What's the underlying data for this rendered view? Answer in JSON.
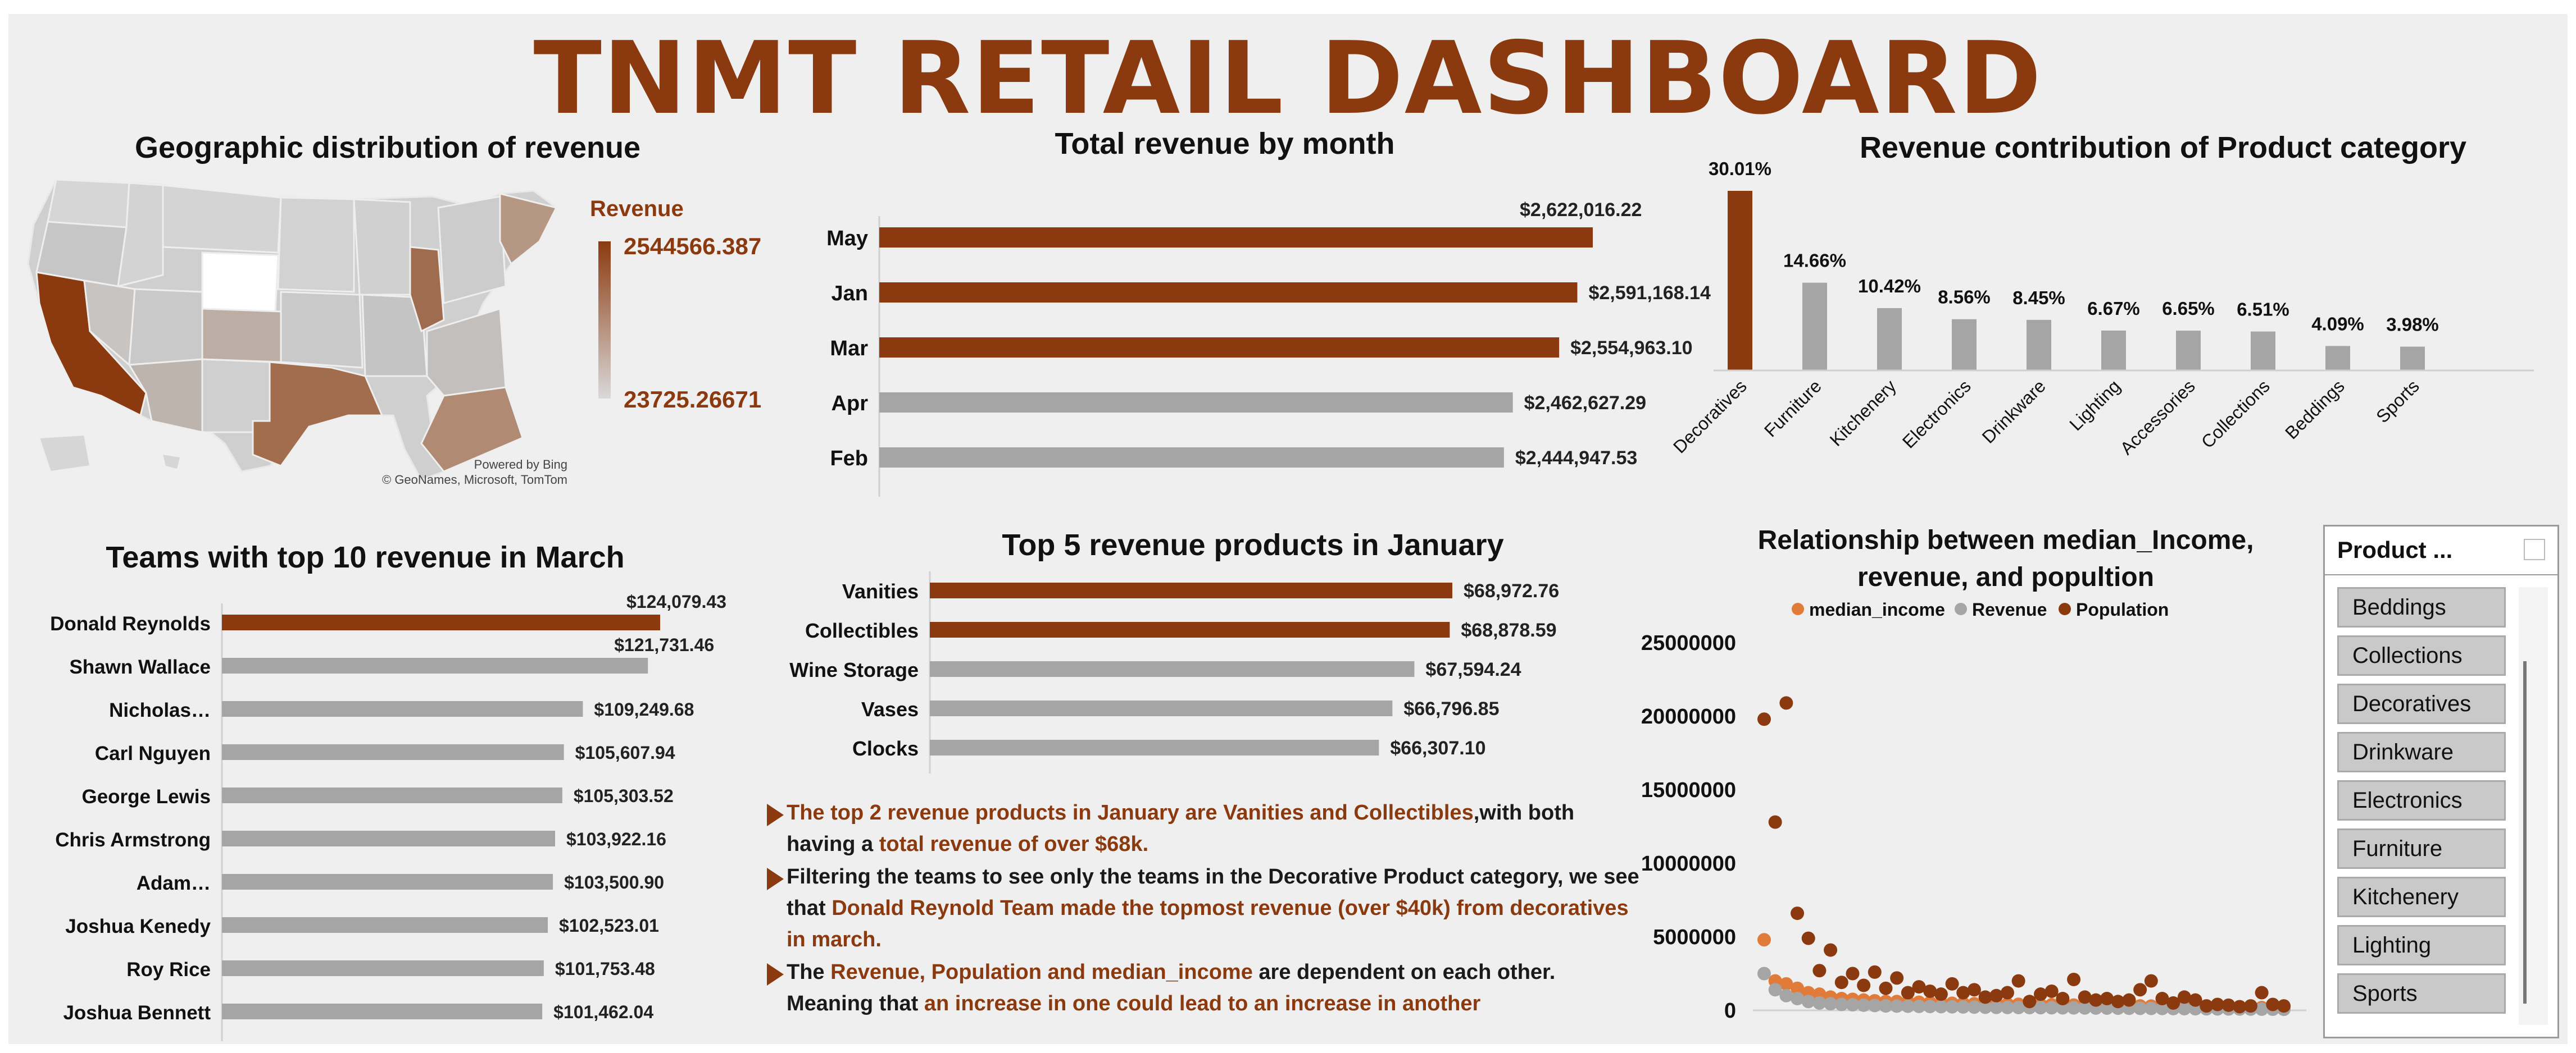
{
  "title": "TNMT RETAIL DASHBOARD",
  "map": {
    "title": "Geographic distribution of revenue",
    "legend_title": "Revenue",
    "max_label": "2544566.387",
    "min_label": "23725.26671",
    "credit_line1": "Powered by Bing",
    "credit_line2": "© GeoNames, Microsoft, TomTom",
    "high_color": "#8b3a0f",
    "low_color": "#d9d9d9"
  },
  "charts": {
    "monthly": {
      "title": "Total revenue by month",
      "type": "bar",
      "categories": [
        "May",
        "Jan",
        "Mar",
        "Apr",
        "Feb"
      ],
      "values": [
        2622016.22,
        2591168.14,
        2554963.1,
        2462627.29,
        2444947.53
      ],
      "labels": [
        "$2,622,016.22",
        "$2,591,168.14",
        "$2,554,963.10",
        "$2,462,627.29",
        "$2,444,947.53"
      ],
      "highlight": [
        true,
        true,
        true,
        false,
        false
      ]
    },
    "category": {
      "title": "Revenue contribution of Product category",
      "type": "bar",
      "categories": [
        "Decoratives",
        "Furniture",
        "Kitchenery",
        "Electronics",
        "Drinkware",
        "Lighting",
        "Accessories",
        "Collections",
        "Beddings",
        "Sports"
      ],
      "values": [
        30.01,
        14.66,
        10.42,
        8.56,
        8.45,
        6.67,
        6.65,
        6.51,
        4.09,
        3.98
      ],
      "labels": [
        "30.01%",
        "14.66%",
        "10.42%",
        "8.56%",
        "8.45%",
        "6.67%",
        "6.65%",
        "6.51%",
        "4.09%",
        "3.98%"
      ],
      "highlight": [
        true,
        false,
        false,
        false,
        false,
        false,
        false,
        false,
        false,
        false
      ]
    },
    "teams": {
      "title": "Teams with top 10 revenue in March",
      "type": "bar",
      "categories": [
        "Donald Reynolds",
        "Shawn Wallace",
        "Nicholas…",
        "Carl Nguyen",
        "George Lewis",
        "Chris Armstrong",
        "Adam…",
        "Joshua Kenedy",
        "Roy Rice",
        "Joshua Bennett"
      ],
      "values": [
        124079.43,
        121731.46,
        109249.68,
        105607.94,
        105303.52,
        103922.16,
        103500.9,
        102523.01,
        101753.48,
        101462.04
      ],
      "labels": [
        "$124,079.43",
        "$121,731.46",
        "$109,249.68",
        "$105,607.94",
        "$105,303.52",
        "$103,922.16",
        "$103,500.90",
        "$102,523.01",
        "$101,753.48",
        "$101,462.04"
      ],
      "highlight": [
        true,
        false,
        false,
        false,
        false,
        false,
        false,
        false,
        false,
        false
      ]
    },
    "products": {
      "title": "Top 5 revenue products in January",
      "type": "bar",
      "categories": [
        "Vanities",
        "Collectibles",
        "Wine Storage",
        "Vases",
        "Clocks"
      ],
      "values": [
        68972.76,
        68878.59,
        67594.24,
        66796.85,
        66307.1
      ],
      "labels": [
        "$68,972.76",
        "$68,878.59",
        "$67,594.24",
        "$66,796.85",
        "$66,307.10"
      ],
      "highlight": [
        true,
        true,
        false,
        false,
        false
      ]
    },
    "scatter": {
      "title_line1": "Relationship between median_Income,",
      "title_line2": "revenue, and popultion",
      "type": "scatter",
      "legend": [
        "median_income",
        "Revenue",
        "Population"
      ],
      "colors": [
        "#e07b39",
        "#a5a5a5",
        "#8b3a0f"
      ],
      "y_ticks": [
        "25000000",
        "20000000",
        "15000000",
        "10000000",
        "5000000",
        "0"
      ],
      "ylim": [
        0,
        25000000
      ],
      "x": [
        1,
        2,
        3,
        4,
        5,
        6,
        7,
        8,
        9,
        10,
        11,
        12,
        13,
        14,
        15,
        16,
        17,
        18,
        19,
        20,
        21,
        22,
        23,
        24,
        25,
        26,
        27,
        28,
        29,
        30,
        31,
        32,
        33,
        34,
        35,
        36,
        37,
        38,
        39,
        40,
        41,
        42,
        43,
        44,
        45,
        46,
        47,
        48
      ],
      "series": [
        {
          "name": "median_income",
          "values": [
            4800000,
            2000000,
            1800000,
            1500000,
            1200000,
            1100000,
            900000,
            800000,
            750000,
            700000,
            650000,
            600000,
            600000,
            580000,
            550000,
            520000,
            500000,
            480000,
            470000,
            450000,
            440000,
            430000,
            420000,
            410000,
            400000,
            390000,
            380000,
            370000,
            360000,
            350000,
            340000,
            330000,
            320000,
            310000,
            300000,
            290000,
            280000,
            270000,
            260000,
            250000,
            240000,
            230000,
            220000,
            210000,
            200000,
            190000,
            180000,
            170000
          ]
        },
        {
          "name": "Revenue",
          "values": [
            2500000,
            1400000,
            1000000,
            800000,
            600000,
            500000,
            450000,
            400000,
            380000,
            350000,
            330000,
            300000,
            290000,
            280000,
            270000,
            260000,
            250000,
            240000,
            230000,
            220000,
            210000,
            200000,
            195000,
            190000,
            185000,
            180000,
            175000,
            170000,
            165000,
            160000,
            155000,
            150000,
            145000,
            140000,
            135000,
            130000,
            125000,
            120000,
            115000,
            110000,
            105000,
            100000,
            95000,
            90000,
            85000,
            80000,
            75000,
            70000
          ]
        },
        {
          "name": "Population",
          "values": [
            19800000,
            12800000,
            20900000,
            6600000,
            4900000,
            2700000,
            4100000,
            1900000,
            2500000,
            1700000,
            2600000,
            1500000,
            2200000,
            1200000,
            1600000,
            1300000,
            1100000,
            1800000,
            1200000,
            1400000,
            900000,
            1000000,
            1200000,
            2000000,
            600000,
            1100000,
            1300000,
            800000,
            2100000,
            900000,
            700000,
            800000,
            600000,
            700000,
            1400000,
            2000000,
            800000,
            500000,
            900000,
            700000,
            300000,
            400000,
            350000,
            250000,
            300000,
            1200000,
            400000,
            300000
          ]
        }
      ]
    }
  },
  "insights": [
    {
      "parts": [
        {
          "text": "The top 2 revenue products in January are Vanities and Collectibles",
          "hl": true
        },
        {
          "text": ",with both having a ",
          "hl": false
        },
        {
          "text": "total revenue of over $68k.",
          "hl": true
        }
      ]
    },
    {
      "parts": [
        {
          "text": "Filtering the teams to see only the teams in the Decorative Product category, we see that ",
          "hl": false
        },
        {
          "text": "Donald Reynold Team made the topmost revenue (over $40k) from decoratives in march.",
          "hl": true
        }
      ]
    },
    {
      "parts": [
        {
          "text": "The ",
          "hl": false
        },
        {
          "text": "Revenue, Population and median_income",
          "hl": true
        },
        {
          "text": " are dependent on each other. Meaning that ",
          "hl": false
        },
        {
          "text": "an increase in one could lead to an increase in another",
          "hl": true
        }
      ]
    }
  ],
  "slicer": {
    "title": "Product ...",
    "items": [
      "Beddings",
      "Collections",
      "Decoratives",
      "Drinkware",
      "Electronics",
      "Furniture",
      "Kitchenery",
      "Lighting",
      "Sports"
    ]
  },
  "colors": {
    "accent": "#8b3a0f",
    "bar_grey": "#a5a5a5",
    "axis": "#d0d0d0"
  }
}
